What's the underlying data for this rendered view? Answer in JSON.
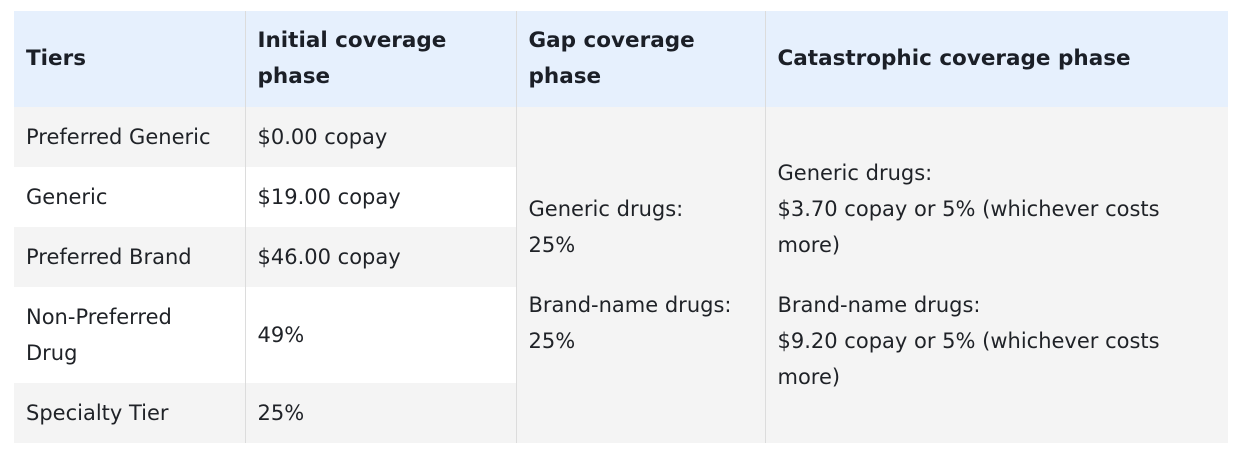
{
  "headers": {
    "tiers": "Tiers",
    "initial": [
      "Initial coverage",
      "phase"
    ],
    "gap": [
      "Gap coverage",
      "phase"
    ],
    "catastrophic": "Catastrophic coverage phase"
  },
  "rows": [
    {
      "tier": "Preferred Generic",
      "initial": "$0.00 copay"
    },
    {
      "tier": "Generic",
      "initial": "$19.00 copay"
    },
    {
      "tier": "Preferred Brand",
      "initial": "$46.00 copay"
    },
    {
      "tier": [
        "Non-Preferred",
        "Drug"
      ],
      "initial": "49%"
    },
    {
      "tier": "Specialty Tier",
      "initial": "25%"
    }
  ],
  "gap": {
    "generic_label": "Generic drugs:",
    "generic_value": "25%",
    "brand_label": "Brand-name drugs:",
    "brand_value": "25%"
  },
  "catastrophic": {
    "generic_label": "Generic drugs:",
    "generic_value": [
      "$3.70 copay or 5% (whichever costs",
      "more)"
    ],
    "brand_label": "Brand-name drugs:",
    "brand_value": [
      "$9.20 copay or 5% (whichever costs",
      "more)"
    ]
  },
  "colors": {
    "header_bg": "#e6f0fd",
    "shade_bg": "#f4f4f4",
    "text": "#1f2227"
  }
}
